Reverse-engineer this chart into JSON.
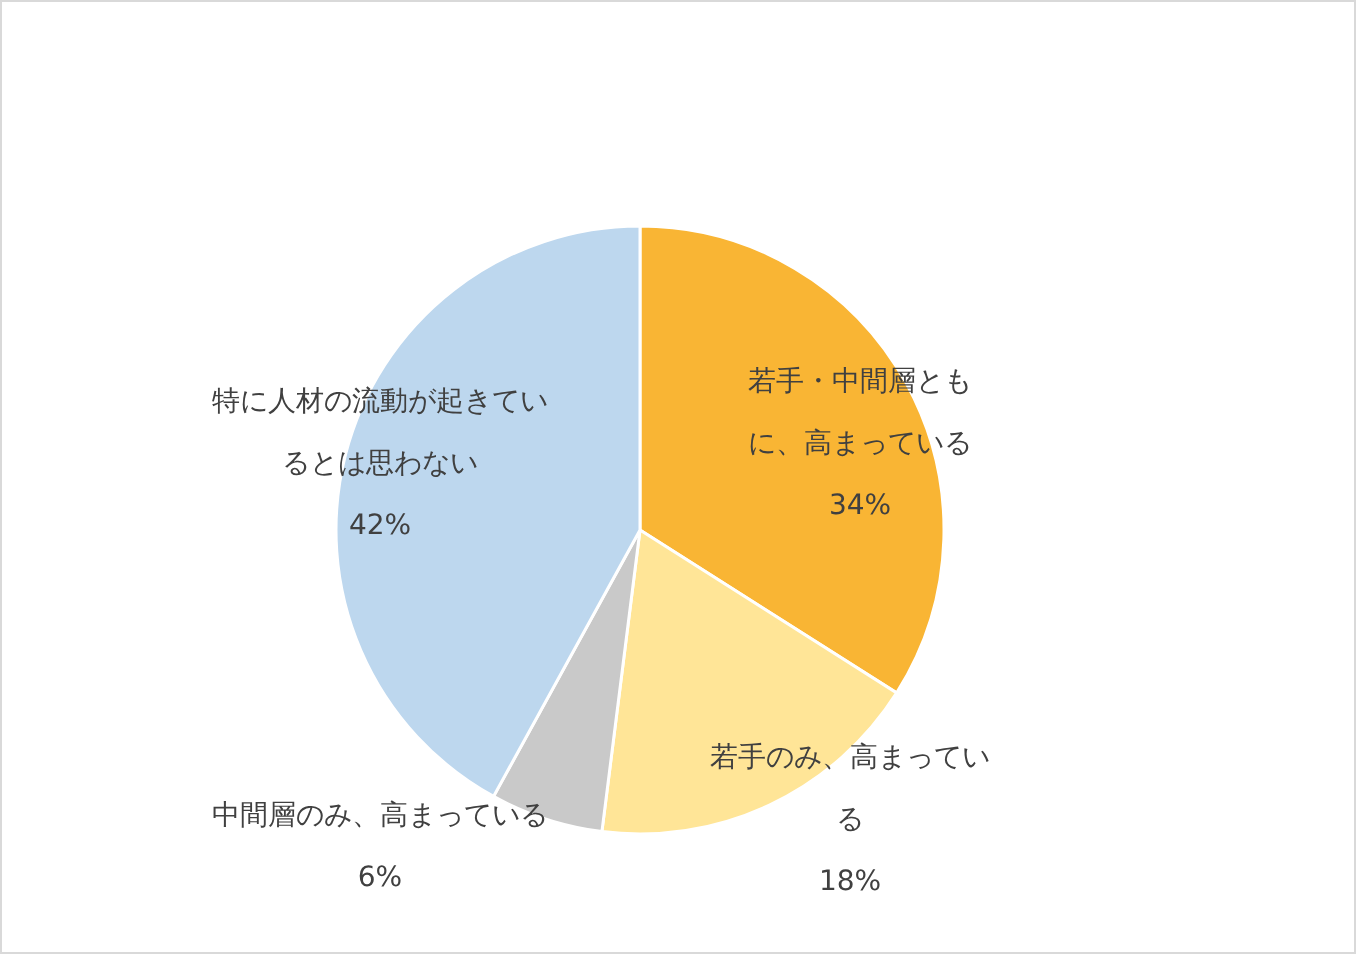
{
  "chart_data": {
    "type": "pie",
    "categories": [
      "若手・中間層ともに、高まっている",
      "若手のみ、高まっている",
      "中間層のみ、高まっている",
      "特に人材の流動が起きているとは思わない"
    ],
    "values": [
      34,
      18,
      6,
      42
    ],
    "value_labels": [
      "34%",
      "18%",
      "6%",
      "42%"
    ],
    "colors": [
      "#f9b534",
      "#ffe597",
      "#c9c9c9",
      "#bdd7ee"
    ]
  }
}
